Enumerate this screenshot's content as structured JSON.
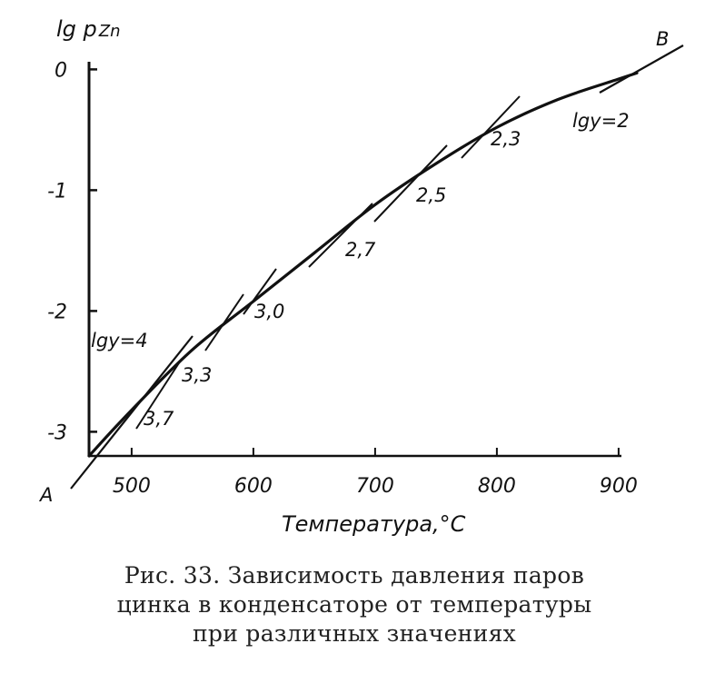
{
  "chart_data": {
    "type": "line",
    "ylabel": "lg p",
    "ylabel_sub": "Zn",
    "xlabel": "Температура,°C",
    "x_ticks": [
      500,
      600,
      700,
      800,
      900
    ],
    "y_ticks": [
      0,
      -1,
      -2,
      -3
    ],
    "y_tick_labels": [
      "0",
      "-1",
      "-2",
      "-3"
    ],
    "xlim": [
      465,
      900
    ],
    "ylim": [
      -3.2,
      0
    ],
    "grid": false,
    "series": [
      {
        "values": [
          {
            "x": 465,
            "y": -3.2
          },
          {
            "x": 500,
            "y": -2.82
          },
          {
            "x": 550,
            "y": -2.32
          },
          {
            "x": 600,
            "y": -1.92
          },
          {
            "x": 650,
            "y": -1.52
          },
          {
            "x": 700,
            "y": -1.12
          },
          {
            "x": 750,
            "y": -0.78
          },
          {
            "x": 800,
            "y": -0.48
          },
          {
            "x": 850,
            "y": -0.25
          },
          {
            "x": 900,
            "y": -0.08
          },
          {
            "x": 915,
            "y": -0.03
          }
        ]
      }
    ],
    "tangents": [
      {
        "label": "3,7",
        "x": 500,
        "y": -2.82
      },
      {
        "label": "3,3",
        "x": 540,
        "y": -2.42
      },
      {
        "label": "3,0",
        "x": 590,
        "y": -1.99
      },
      {
        "label": "2,7",
        "x": 660,
        "y": -1.44
      },
      {
        "label": "2,5",
        "x": 725,
        "y": -0.95
      },
      {
        "label": "2,3",
        "x": 800,
        "y": -0.48
      }
    ],
    "annotations": [
      {
        "text": "lgy=4",
        "x": 478,
        "y": -2.15
      },
      {
        "text": "lgy=2",
        "x": 865,
        "y": -0.42
      },
      {
        "text": "A",
        "x": 437,
        "y": -3.55
      },
      {
        "text": "B",
        "x": 912,
        "y": 0.12
      }
    ]
  },
  "caption": {
    "lines": [
      "Рис. 33. Зависимость давления паров",
      "цинка в конденсаторе от температуры",
      "при различных значениях"
    ]
  }
}
